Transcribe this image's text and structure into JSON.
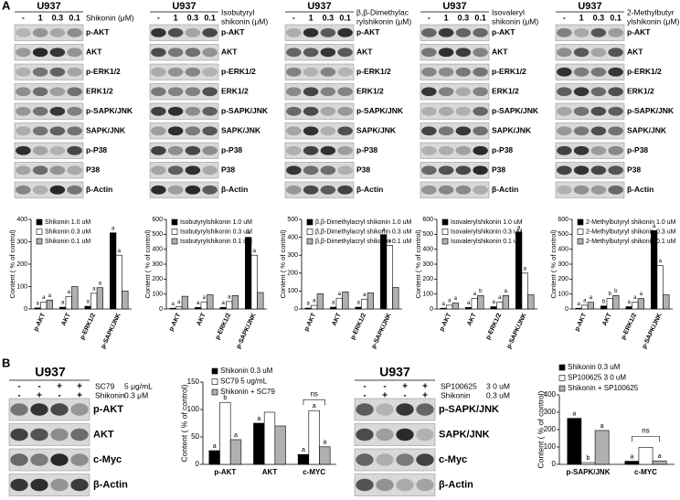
{
  "panel_labels": [
    "A",
    "B"
  ],
  "blots": [
    {
      "cell": "U937",
      "treatment": [
        "Shikonin (μM)"
      ],
      "lanes": [
        "-",
        "1",
        "0.3",
        "0.1"
      ],
      "bands": [
        "p-AKT",
        "AKT",
        "p-ERK1/2",
        "ERK1/2",
        "p-SAPK/JNK",
        "SAPK/JNK",
        "p-P38",
        "P38",
        "β-Actin"
      ]
    },
    {
      "cell": "U937",
      "treatment": [
        "Isobutyryl",
        "shikonin (μM)"
      ],
      "lanes": [
        "-",
        "1",
        "0.3",
        "0.1"
      ],
      "bands": [
        "p-AKT",
        "AKT",
        "p-ERK1/2",
        "ERK1/2",
        "p-SAPK/JNK",
        "SAPK/JNK",
        "p-P38",
        "P38",
        "β-Actin"
      ]
    },
    {
      "cell": "U937",
      "treatment": [
        "β,β-Dimethylac",
        "rylshikonin (μM)"
      ],
      "lanes": [
        "-",
        "1",
        "0.3",
        "0.1"
      ],
      "bands": [
        "p-AKT",
        "AKT",
        "p-ERK1/2",
        "ERK1/2",
        "p-SAPK/JNK",
        "SAPK/JNK",
        "p-P38",
        "P38",
        "β-Actin"
      ]
    },
    {
      "cell": "U937",
      "treatment": [
        "Isovaleryl",
        "shikonin (μM)"
      ],
      "lanes": [
        "-",
        "1",
        "0.3",
        "0.1"
      ],
      "bands": [
        "p-AKT",
        "AKT",
        "p-ERK1/2",
        "ERK1/2",
        "p-SAPK/JNK",
        "SAPK/JNK",
        "p-P38",
        "P38",
        "β-Actin"
      ]
    },
    {
      "cell": "U937",
      "treatment": [
        "2-Methylbutyr",
        "ylshikonin (μM)"
      ],
      "lanes": [
        "-",
        "1",
        "0.3",
        "0.1"
      ],
      "bands": [
        "p-AKT",
        "AKT",
        "p-ERK1/2",
        "ERK1/2",
        "p-SAPK/JNK",
        "SAPK/JNK",
        "p-P38",
        "P38",
        "β-Actin"
      ]
    },
    {
      "cell": "U937",
      "conditions": [
        {
          "name": "SC79",
          "dose": "5 μg/mL",
          "signs": [
            "-",
            "-",
            "+",
            "+"
          ]
        },
        {
          "name": "Shikonin",
          "dose": "0.3 μM",
          "signs": [
            "-",
            "+",
            "-",
            "+"
          ]
        }
      ],
      "bands": [
        "p-AKT",
        "AKT",
        "c-Myc",
        "β-Actin"
      ]
    },
    {
      "cell": "U937",
      "conditions": [
        {
          "name": "SP100625",
          "dose": "3 0 uM",
          "signs": [
            "-",
            "-",
            "+",
            "+"
          ]
        },
        {
          "name": "Shikonin",
          "dose": "0.3 uM",
          "signs": [
            "-",
            "+",
            "-",
            "+"
          ]
        }
      ],
      "bands": [
        "p-SAPK/JNK",
        "SAPK/JNK",
        "c-Myc",
        "β-Actin"
      ]
    }
  ],
  "chart_data": [
    {
      "type": "bar",
      "ylabel": "Content ( % of control)",
      "categories": [
        "p-AKT",
        "AKT",
        "p-ERK1/2",
        "p-SAPK/JNK"
      ],
      "ylim": [
        0,
        400
      ],
      "yticks": [
        0,
        100,
        200,
        300,
        400
      ],
      "series": [
        {
          "name": "Shikonin 1.0 uM",
          "color": "#000000",
          "values": [
            5,
            8,
            12,
            340
          ],
          "letters": [
            "a",
            "a",
            "a",
            "a"
          ]
        },
        {
          "name": "Shikonin 0.3 uM",
          "color": "#ffffff",
          "values": [
            30,
            55,
            70,
            240
          ],
          "letters": [
            "a",
            "a",
            "a",
            "a"
          ]
        },
        {
          "name": "Shikonin 0.1 uM",
          "color": "#b0b0b0",
          "values": [
            40,
            100,
            95,
            80
          ],
          "letters": [
            "a",
            null,
            "a",
            null
          ]
        }
      ]
    },
    {
      "type": "bar",
      "ylabel": "Content ( % of control)",
      "categories": [
        "p-AKT",
        "AKT",
        "p-ERK1/2",
        "p-SAPK/JNK"
      ],
      "ylim": [
        0,
        600
      ],
      "yticks": [
        0,
        100,
        200,
        300,
        400,
        500,
        600
      ],
      "series": [
        {
          "name": "Isobutyrylshikonin 1.0 uM",
          "color": "#000000",
          "values": [
            5,
            10,
            10,
            480
          ],
          "letters": [
            "a",
            "a",
            "a",
            "a"
          ]
        },
        {
          "name": "Isobutyrylshikonin 0.3 uM",
          "color": "#ffffff",
          "values": [
            15,
            45,
            50,
            360
          ],
          "letters": [
            "a",
            "a",
            "a",
            "a"
          ]
        },
        {
          "name": "Isobutyrylshikonin 0.1 uM",
          "color": "#b0b0b0",
          "values": [
            85,
            95,
            90,
            110
          ],
          "letters": [
            null,
            null,
            null,
            null
          ]
        }
      ]
    },
    {
      "type": "bar",
      "ylabel": "Content ( % of control)",
      "categories": [
        "p-AKT",
        "AKT",
        "p-ERK1/2",
        "p-SAPK/JNK"
      ],
      "ylim": [
        0,
        500
      ],
      "yticks": [
        0,
        100,
        200,
        300,
        400,
        500
      ],
      "series": [
        {
          "name": "β,β-Dimethylacryl shikonin 1.0 uM",
          "color": "#000000",
          "values": [
            5,
            10,
            10,
            415
          ],
          "letters": [
            "a",
            "a",
            "a",
            "a"
          ]
        },
        {
          "name": "β,β-Dimethylacryl shikonin 0.3 uM",
          "color": "#ffffff",
          "values": [
            20,
            60,
            55,
            355
          ],
          "letters": [
            "a",
            "a",
            "a",
            "a"
          ]
        },
        {
          "name": "β,β-Dimethylacryl shikonin 0.1 uM",
          "color": "#b0b0b0",
          "values": [
            85,
            95,
            90,
            120
          ],
          "letters": [
            null,
            null,
            null,
            null
          ]
        }
      ]
    },
    {
      "type": "bar",
      "ylabel": "Content ( % of control)",
      "categories": [
        "p-AKT",
        "AKT",
        "p-ERK1/2",
        "p-SAPK/JNK"
      ],
      "ylim": [
        0,
        600
      ],
      "yticks": [
        0,
        100,
        200,
        300,
        400,
        500,
        600
      ],
      "series": [
        {
          "name": "Isovalerylshikonin 1.0 uM",
          "color": "#000000",
          "values": [
            5,
            10,
            15,
            515
          ],
          "letters": [
            "a",
            "a",
            "a",
            "a"
          ]
        },
        {
          "name": "Isovalerylshikonin 0.3 uM",
          "color": "#ffffff",
          "values": [
            25,
            70,
            45,
            240
          ],
          "letters": [
            "a",
            "a",
            "a",
            "a"
          ]
        },
        {
          "name": "Isovalerylshikonin 0.1 uM",
          "color": "#b0b0b0",
          "values": [
            40,
            90,
            90,
            95
          ],
          "letters": [
            "a",
            "b",
            "a",
            null
          ]
        }
      ]
    },
    {
      "type": "bar",
      "ylabel": "Content ( % of control)",
      "categories": [
        "p-AKT",
        "AKT",
        "p-ERK1/2",
        "p-SAPK/JNK"
      ],
      "ylim": [
        0,
        600
      ],
      "yticks": [
        0,
        100,
        200,
        300,
        400,
        500,
        600
      ],
      "series": [
        {
          "name": "2-Methylbutyryl shikonin 1.0 uM",
          "color": "#000000",
          "values": [
            5,
            20,
            15,
            525
          ],
          "letters": [
            "a",
            "b",
            "a",
            "a"
          ]
        },
        {
          "name": "2-Methylbutyryl shikonin 0.3 uM",
          "color": "#ffffff",
          "values": [
            25,
            70,
            45,
            290
          ],
          "letters": [
            "a",
            "b",
            "a",
            "a"
          ]
        },
        {
          "name": "2-Methylbutyryl shikonin 0.1 uM",
          "color": "#b0b0b0",
          "values": [
            45,
            90,
            70,
            95
          ],
          "letters": [
            "a",
            "b",
            "a",
            null
          ]
        }
      ]
    },
    {
      "type": "bar",
      "ylabel": "Content ( % of control)",
      "categories": [
        "p-AKT",
        "AKT",
        "c-MYC"
      ],
      "ylim": [
        0,
        150
      ],
      "yticks": [
        0,
        50,
        100,
        150
      ],
      "annotation": "ns",
      "series": [
        {
          "name": "Shikonin 0.3 uM",
          "color": "#000000",
          "values": [
            25,
            75,
            18
          ],
          "letters": [
            "a",
            "a",
            "a"
          ]
        },
        {
          "name": "SC79 5 ug/mL",
          "color": "#ffffff",
          "values": [
            113,
            95,
            98
          ],
          "letters": [
            "b",
            null,
            "a"
          ]
        },
        {
          "name": "Shikonin + SC79",
          "color": "#b0b0b0",
          "values": [
            45,
            70,
            32
          ],
          "letters": [
            "a",
            null,
            "a"
          ]
        }
      ]
    },
    {
      "type": "bar",
      "ylabel": "Content ( % of control)",
      "categories": [
        "p-SAPK/JNK",
        "c-MYC"
      ],
      "ylim": [
        0,
        400
      ],
      "yticks": [
        0,
        100,
        200,
        300,
        400
      ],
      "annotation": "ns",
      "series": [
        {
          "name": "Shikonin 0.3 uM",
          "color": "#000000",
          "values": [
            265,
            18
          ],
          "letters": [
            "a",
            "a"
          ]
        },
        {
          "name": "SP100625 3 0 uM",
          "color": "#ffffff",
          "values": [
            10,
            98
          ],
          "letters": [
            "b",
            null
          ]
        },
        {
          "name": "Shikonin + SP100625",
          "color": "#b0b0b0",
          "values": [
            195,
            20
          ],
          "letters": [
            "a",
            "a"
          ]
        }
      ]
    }
  ]
}
